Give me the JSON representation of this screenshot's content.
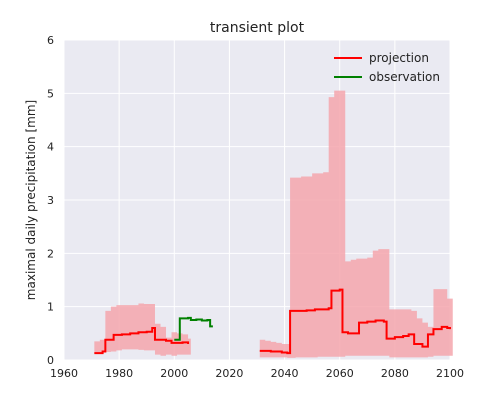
{
  "chart_data": {
    "type": "line",
    "title": "transient plot",
    "xlabel": "",
    "ylabel": "maximal daily precipitation [mm]",
    "xlim": [
      1960,
      2100
    ],
    "ylim": [
      0,
      6
    ],
    "xticks": [
      1960,
      1980,
      2000,
      2020,
      2040,
      2060,
      2080,
      2100
    ],
    "yticks": [
      0,
      1,
      2,
      3,
      4,
      5,
      6
    ],
    "grid": true,
    "legend_position": "top-right",
    "colors": {
      "background": "#eaeaf2",
      "grid": "#ffffff",
      "band": "#f4a6ad",
      "projection": "#ff0000",
      "observation": "#008000"
    },
    "legend": [
      "projection",
      "observation"
    ],
    "band": {
      "name": "",
      "color": "#f4a6ad",
      "segments": [
        [
          [
            1971,
            0.35,
            0.14
          ],
          [
            1973,
            0.38,
            0.14
          ],
          [
            1975,
            0.92,
            0.15
          ],
          [
            1977,
            1.0,
            0.16
          ],
          [
            1979,
            1.03,
            0.18
          ],
          [
            1981,
            1.03,
            0.2
          ],
          [
            1983,
            1.03,
            0.2
          ],
          [
            1985,
            1.03,
            0.2
          ],
          [
            1987,
            1.06,
            0.19
          ],
          [
            1989,
            1.05,
            0.18
          ],
          [
            1991,
            1.05,
            0.18
          ],
          [
            1993,
            0.68,
            0.1
          ],
          [
            1995,
            0.62,
            0.08
          ],
          [
            1997,
            0.42,
            0.1
          ],
          [
            1999,
            0.52,
            0.08
          ],
          [
            2001,
            0.5,
            0.1
          ],
          [
            2003,
            0.48,
            0.1
          ],
          [
            2005,
            0.4,
            0.1
          ]
        ],
        [
          [
            2031,
            0.38,
            0.05
          ],
          [
            2033,
            0.36,
            0.05
          ],
          [
            2035,
            0.34,
            0.05
          ],
          [
            2037,
            0.32,
            0.05
          ],
          [
            2039,
            0.3,
            0.05
          ],
          [
            2041,
            0.3,
            0.04
          ],
          [
            2042,
            3.42,
            0.04
          ],
          [
            2044,
            3.42,
            0.05
          ],
          [
            2046,
            3.44,
            0.05
          ],
          [
            2048,
            3.44,
            0.05
          ],
          [
            2050,
            3.5,
            0.05
          ],
          [
            2052,
            3.5,
            0.06
          ],
          [
            2054,
            3.52,
            0.06
          ],
          [
            2056,
            4.93,
            0.06
          ],
          [
            2058,
            5.05,
            0.06
          ],
          [
            2060,
            5.05,
            0.06
          ],
          [
            2062,
            1.85,
            0.08
          ],
          [
            2064,
            1.88,
            0.08
          ],
          [
            2066,
            1.9,
            0.08
          ],
          [
            2068,
            1.9,
            0.08
          ],
          [
            2070,
            1.92,
            0.08
          ],
          [
            2072,
            2.05,
            0.08
          ],
          [
            2074,
            2.08,
            0.08
          ],
          [
            2076,
            2.08,
            0.08
          ],
          [
            2078,
            0.95,
            0.05
          ],
          [
            2080,
            0.95,
            0.05
          ],
          [
            2082,
            0.95,
            0.05
          ],
          [
            2084,
            0.95,
            0.05
          ],
          [
            2086,
            0.92,
            0.05
          ],
          [
            2088,
            0.78,
            0.05
          ],
          [
            2090,
            0.7,
            0.05
          ],
          [
            2092,
            0.62,
            0.06
          ],
          [
            2094,
            1.33,
            0.08
          ],
          [
            2096,
            1.33,
            0.08
          ],
          [
            2098,
            1.33,
            0.08
          ],
          [
            2099,
            1.15,
            0.08
          ],
          [
            2100,
            1.15,
            0.08
          ]
        ]
      ]
    },
    "series": [
      {
        "name": "projection",
        "color": "#ff0000",
        "segments": [
          [
            [
              1971,
              0.13
            ],
            [
              1974,
              0.16
            ],
            [
              1975,
              0.38
            ],
            [
              1977,
              0.38
            ],
            [
              1978,
              0.47
            ],
            [
              1981,
              0.48
            ],
            [
              1984,
              0.5
            ],
            [
              1987,
              0.52
            ],
            [
              1990,
              0.53
            ],
            [
              1992,
              0.6
            ],
            [
              1993,
              0.38
            ],
            [
              1997,
              0.36
            ],
            [
              1999,
              0.32
            ],
            [
              2003,
              0.33
            ],
            [
              2005,
              0.3
            ]
          ],
          [
            [
              2031,
              0.17
            ],
            [
              2035,
              0.16
            ],
            [
              2039,
              0.14
            ],
            [
              2041,
              0.13
            ],
            [
              2042,
              0.92
            ],
            [
              2045,
              0.92
            ],
            [
              2048,
              0.93
            ],
            [
              2051,
              0.95
            ],
            [
              2054,
              0.95
            ],
            [
              2056,
              0.97
            ],
            [
              2057,
              1.3
            ],
            [
              2060,
              1.32
            ],
            [
              2061,
              0.52
            ],
            [
              2063,
              0.5
            ],
            [
              2066,
              0.5
            ],
            [
              2067,
              0.7
            ],
            [
              2070,
              0.72
            ],
            [
              2073,
              0.74
            ],
            [
              2076,
              0.72
            ],
            [
              2077,
              0.4
            ],
            [
              2080,
              0.43
            ],
            [
              2083,
              0.45
            ],
            [
              2085,
              0.48
            ],
            [
              2087,
              0.3
            ],
            [
              2090,
              0.25
            ],
            [
              2092,
              0.48
            ],
            [
              2094,
              0.58
            ],
            [
              2097,
              0.62
            ],
            [
              2099,
              0.6
            ],
            [
              2100,
              0.58
            ]
          ]
        ]
      },
      {
        "name": "observation",
        "color": "#008000",
        "segments": [
          [
            [
              2000,
              0.38
            ],
            [
              2001,
              0.38
            ],
            [
              2002,
              0.78
            ],
            [
              2005,
              0.79
            ],
            [
              2006,
              0.75
            ],
            [
              2008,
              0.76
            ],
            [
              2010,
              0.74
            ],
            [
              2012,
              0.75
            ],
            [
              2013,
              0.63
            ],
            [
              2014,
              0.63
            ]
          ]
        ]
      }
    ]
  }
}
